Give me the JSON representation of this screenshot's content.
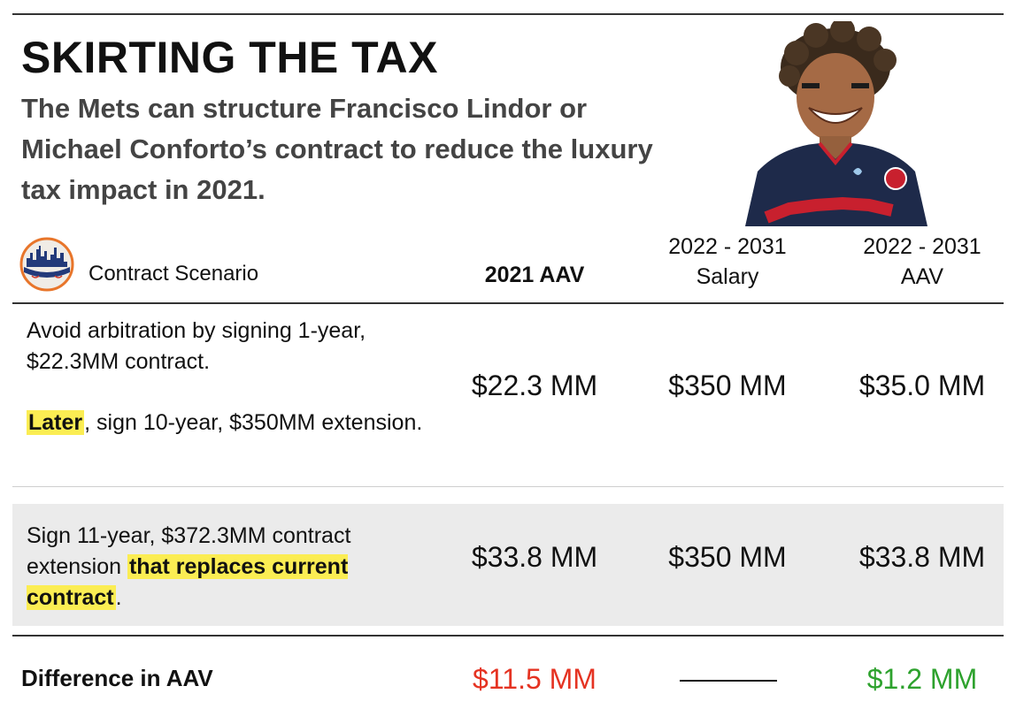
{
  "header": {
    "title": "SKIRTING THE TAX",
    "subtitle": "The Mets can structure Francisco Lindor or Michael Conforto’s contract to reduce the luxury tax impact in 2021."
  },
  "table": {
    "columns": {
      "scenario": "Contract Scenario",
      "aav_2021": "2021 AAV",
      "salary_2022_2031_line1": "2022 - 2031",
      "salary_2022_2031_line2": "Salary",
      "aav_2022_2031_line1": "2022 - 2031",
      "aav_2022_2031_line2": "AAV"
    },
    "rows": [
      {
        "scenario_part1": "Avoid arbitration by signing 1-year, $22.3MM contract.",
        "scenario_highlight": "Later",
        "scenario_part2": ", sign 10-year, $350MM extension.",
        "aav_2021": "$22.3 MM",
        "salary_2022_2031": "$350 MM",
        "aav_2022_2031": "$35.0 MM"
      },
      {
        "scenario_part1": "Sign 11-year, $372.3MM contract extension ",
        "scenario_highlight": "that replaces current contract",
        "scenario_part2": ".",
        "aav_2021": "$33.8 MM",
        "salary_2022_2031": "$350 MM",
        "aav_2022_2031": "$33.8 MM"
      }
    ],
    "difference": {
      "label": "Difference in AAV",
      "aav_2021": "$11.5 MM",
      "aav_2022_2031": "$1.2 MM"
    }
  },
  "colors": {
    "highlight": "#fbed53",
    "negative": "#e53322",
    "positive": "#2ea22e",
    "shaded_row": "#ebebeb",
    "jersey_navy": "#1e2a4a",
    "jersey_red": "#c8202e"
  },
  "icons": {
    "team_logo": "mets-skyline-baseball-icon",
    "player_photo": "player-photo"
  }
}
